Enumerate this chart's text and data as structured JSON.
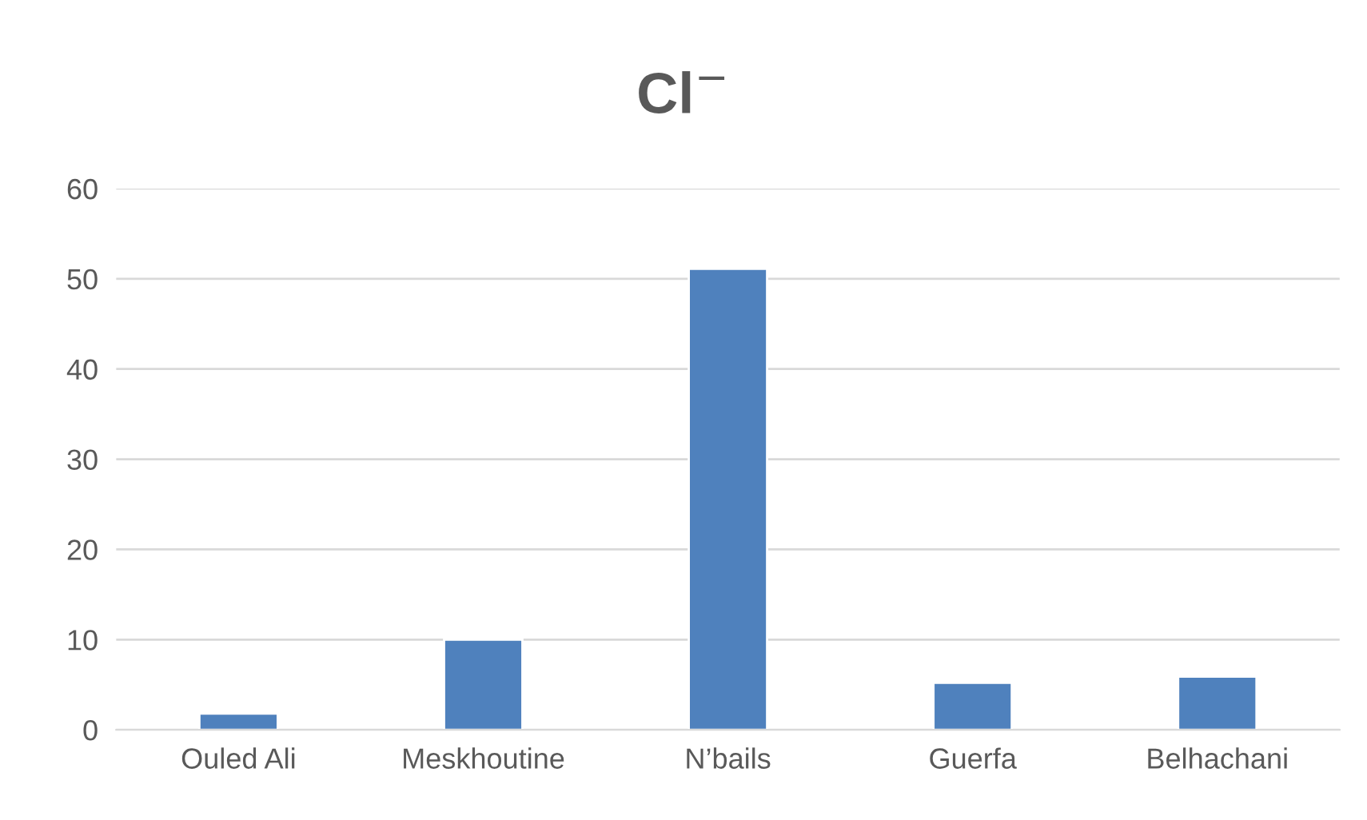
{
  "chart_data": {
    "type": "bar",
    "title": "Cl$^{−}$",
    "categories": [
      "Ouled Ali",
      "Meskhoutine",
      "N’bails",
      "Guerfa",
      "Belhachani"
    ],
    "values": [
      1.8,
      10.0,
      51.1,
      5.2,
      5.9
    ],
    "color": "#4f81bd",
    "ylim": [
      0,
      60
    ],
    "yticks": [
      0,
      10,
      20,
      30,
      40,
      50,
      60
    ],
    "grid": "y"
  }
}
